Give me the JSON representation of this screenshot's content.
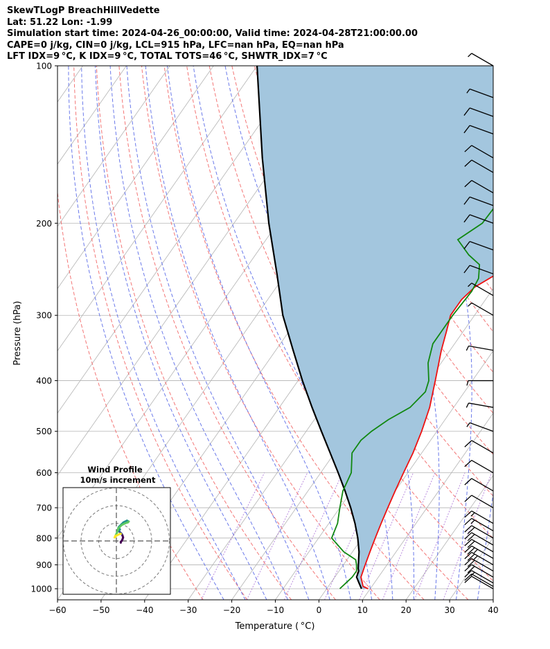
{
  "header": {
    "line1": "SkewTLogP BreachHillVedette",
    "line2": "Lat: 51.22   Lon: -1.99",
    "line3": "Simulation start time: 2024-04-26_00:00:00, Valid time: 2024-04-28T21:00:00.00",
    "line4": "CAPE=0 j/kg, CIN=0 j/kg, LCL=915 hPa, LFC=nan hPa, EQ=nan hPa",
    "line5": "LFT IDX=9 °C, K IDX=9 °C, TOTAL TOTS=46 °C, SHWTR_IDX=7 °C"
  },
  "colors": {
    "temperature": "#ee1111",
    "dewpoint": "#118811",
    "parcel": "#000000",
    "cape_fill": "#a3c6de",
    "dry_adiabat": "#f26666",
    "moist_adiabat": "#5a6ae8",
    "isotherm": "#b3b3b3",
    "mixing_ratio": "#9b59d0"
  },
  "chart_data": {
    "type": "line",
    "title": "",
    "xlabel": "Temperature ( °C)",
    "ylabel": "Pressure (hPa)",
    "xlim": [
      -60,
      40
    ],
    "ylim": [
      1050,
      100
    ],
    "y_scale": "log",
    "grid": true,
    "x_ticks": [
      "−60",
      "−50",
      "−40",
      "−30",
      "−20",
      "−10",
      "0",
      "10",
      "20",
      "30",
      "40"
    ],
    "y_ticks": [
      "100",
      "200",
      "300",
      "400",
      "500",
      "600",
      "700",
      "800",
      "900",
      "1000"
    ],
    "series": [
      {
        "key": "temperature",
        "points": [
          [
            1000,
            9.5
          ],
          [
            990,
            8
          ],
          [
            950,
            6
          ],
          [
            925,
            5.5
          ],
          [
            900,
            5
          ],
          [
            850,
            4
          ],
          [
            800,
            3
          ],
          [
            750,
            2
          ],
          [
            700,
            1
          ],
          [
            650,
            0
          ],
          [
            600,
            -1
          ],
          [
            550,
            -2
          ],
          [
            500,
            -3.5
          ],
          [
            450,
            -5.5
          ],
          [
            400,
            -8.5
          ],
          [
            350,
            -12
          ],
          [
            320,
            -14
          ],
          [
            300,
            -15.5
          ],
          [
            280,
            -15.5
          ],
          [
            265,
            -14.5
          ],
          [
            250,
            -11.5
          ],
          [
            230,
            -7
          ],
          [
            215,
            -3
          ],
          [
            200,
            -1.5
          ],
          [
            185,
            -1
          ],
          [
            165,
            -0.5
          ],
          [
            150,
            1
          ],
          [
            130,
            2
          ],
          [
            115,
            3
          ],
          [
            100,
            4
          ]
        ]
      },
      {
        "key": "dewpoint",
        "points": [
          [
            1000,
            3
          ],
          [
            975,
            3.5
          ],
          [
            950,
            4
          ],
          [
            925,
            4
          ],
          [
            900,
            3
          ],
          [
            880,
            2
          ],
          [
            850,
            -2
          ],
          [
            800,
            -7
          ],
          [
            750,
            -8
          ],
          [
            700,
            -10
          ],
          [
            650,
            -12
          ],
          [
            600,
            -13
          ],
          [
            550,
            -16
          ],
          [
            520,
            -16
          ],
          [
            500,
            -15
          ],
          [
            475,
            -13
          ],
          [
            450,
            -10
          ],
          [
            420,
            -9
          ],
          [
            400,
            -10
          ],
          [
            370,
            -13
          ],
          [
            340,
            -15
          ],
          [
            320,
            -15
          ],
          [
            300,
            -15
          ],
          [
            270,
            -14.5
          ],
          [
            255,
            -15
          ],
          [
            240,
            -17
          ],
          [
            230,
            -21
          ],
          [
            215,
            -26
          ],
          [
            200,
            -23
          ],
          [
            170,
            -22.5
          ],
          [
            130,
            -21.5
          ],
          [
            100,
            -21
          ]
        ]
      },
      {
        "key": "parcel",
        "points": [
          [
            1000,
            8
          ],
          [
            975,
            6.5
          ],
          [
            950,
            5
          ],
          [
            925,
            4.5
          ],
          [
            915,
            4
          ],
          [
            850,
            1.5
          ],
          [
            800,
            -1
          ],
          [
            750,
            -4
          ],
          [
            700,
            -7.5
          ],
          [
            650,
            -11.5
          ],
          [
            600,
            -16
          ],
          [
            550,
            -21
          ],
          [
            500,
            -26.5
          ],
          [
            450,
            -32.5
          ],
          [
            400,
            -39
          ],
          [
            350,
            -46
          ],
          [
            300,
            -54
          ],
          [
            250,
            -62
          ],
          [
            200,
            -72
          ],
          [
            150,
            -84
          ],
          [
            100,
            -100
          ]
        ]
      }
    ],
    "wind_barbs": {
      "pressures": [
        1000,
        990,
        975,
        950,
        925,
        900,
        875,
        850,
        825,
        800,
        775,
        750,
        700,
        650,
        600,
        550,
        500,
        450,
        400,
        350,
        300,
        275,
        250,
        225,
        200,
        185,
        175,
        160,
        150,
        135,
        125,
        115,
        100
      ],
      "speed_kt": [
        10,
        10,
        15,
        20,
        20,
        25,
        25,
        20,
        20,
        20,
        15,
        15,
        10,
        10,
        10,
        10,
        5,
        5,
        5,
        5,
        5,
        5,
        10,
        10,
        10,
        10,
        10,
        10,
        10,
        10,
        10,
        5,
        5
      ],
      "direction_deg": [
        300,
        300,
        300,
        300,
        300,
        300,
        300,
        300,
        300,
        300,
        300,
        300,
        300,
        300,
        300,
        300,
        290,
        280,
        270,
        280,
        300,
        300,
        290,
        290,
        290,
        290,
        300,
        300,
        300,
        290,
        290,
        290,
        300
      ]
    },
    "inset": {
      "title": "Wind Profile",
      "subtitle": "10m/s increment",
      "rings": [
        10,
        20,
        30
      ],
      "hodograph_u": [
        2.5,
        2.5,
        3.0,
        3.5,
        3.8,
        3.5,
        3.0,
        2.5,
        2.0,
        1.5,
        1.2,
        1.5,
        2.0,
        1.8,
        1.5,
        1.2,
        1.5,
        2.0,
        3.0,
        4.0,
        5.0,
        6.0,
        7.0,
        6.5,
        5.0,
        3.0,
        1.0,
        0.5,
        -0.5,
        -1.0,
        0.0,
        2.0,
        2.5
      ],
      "hodograph_v": [
        -1.0,
        -0.5,
        0.0,
        1.0,
        2.0,
        3.0,
        4.0,
        4.5,
        5.0,
        5.5,
        5.8,
        6.0,
        6.5,
        6.8,
        7.0,
        7.5,
        8.0,
        8.5,
        9.5,
        10.5,
        11.0,
        11.5,
        11.0,
        10.5,
        10.0,
        9.0,
        7.0,
        5.0,
        3.0,
        2.0,
        3.0,
        4.0,
        4.0
      ]
    }
  }
}
